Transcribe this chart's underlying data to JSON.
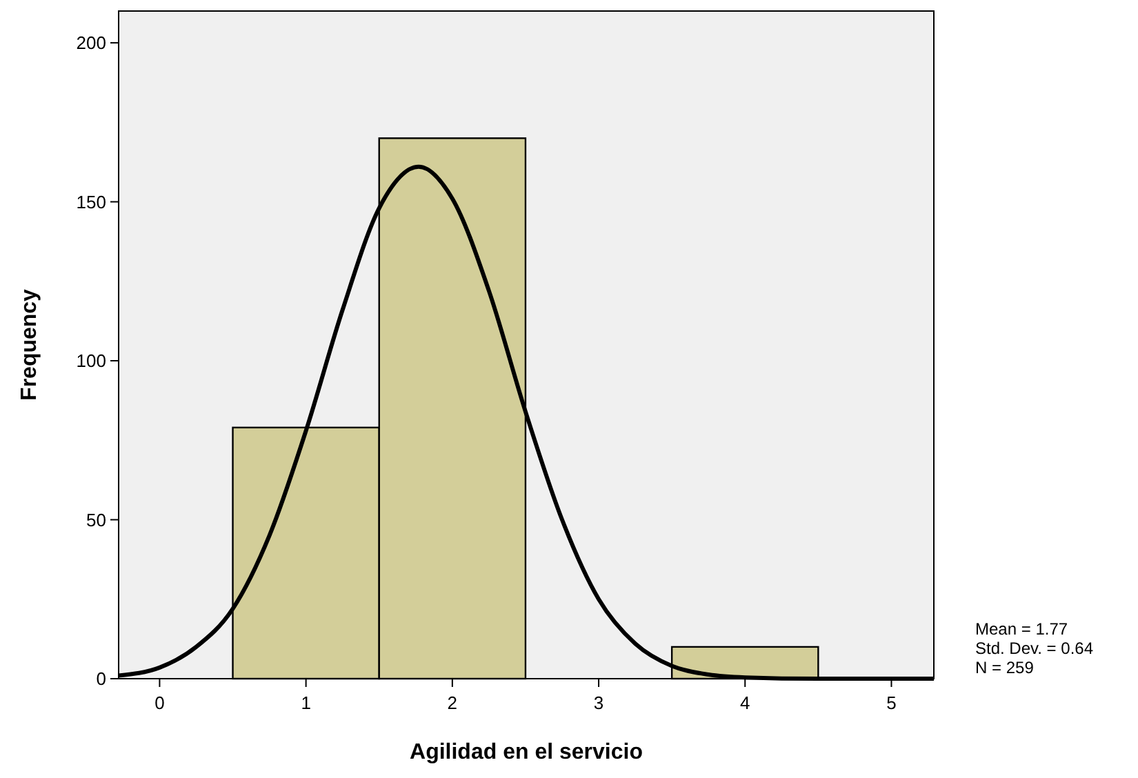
{
  "chart_data": {
    "type": "histogram",
    "xlabel": "Agilidad en el servicio",
    "ylabel": "Frequency",
    "bins": [
      0.5,
      1.5,
      2.5,
      3.5,
      4.5
    ],
    "values": [
      79,
      170,
      0,
      10
    ],
    "color": "#d3ce99",
    "series": [
      {
        "type": "line",
        "color": "#000000",
        "x": [
          -0.28,
          0,
          0.25,
          0.5,
          0.75,
          1,
          1.25,
          1.5,
          1.77,
          2,
          2.25,
          2.5,
          2.75,
          3,
          3.25,
          3.5,
          3.75,
          4,
          4.5,
          5.29
        ],
        "values": [
          1,
          3.5,
          10,
          22,
          45,
          78,
          116,
          148,
          161,
          151,
          122,
          84,
          50,
          25,
          11,
          4,
          1.3,
          0.4,
          0,
          0
        ]
      }
    ],
    "xlim": [
      -0.28,
      5.29
    ],
    "ylim": [
      0,
      210
    ],
    "xticks": [
      0,
      1,
      2,
      3,
      4,
      5
    ],
    "yticks": [
      0,
      50,
      100,
      150,
      200
    ],
    "grid": false,
    "marker": "none",
    "line_style": "solid",
    "annotations": [
      "Mean = 1.77",
      "Std. Dev. = 0.64",
      "N = 259"
    ]
  }
}
